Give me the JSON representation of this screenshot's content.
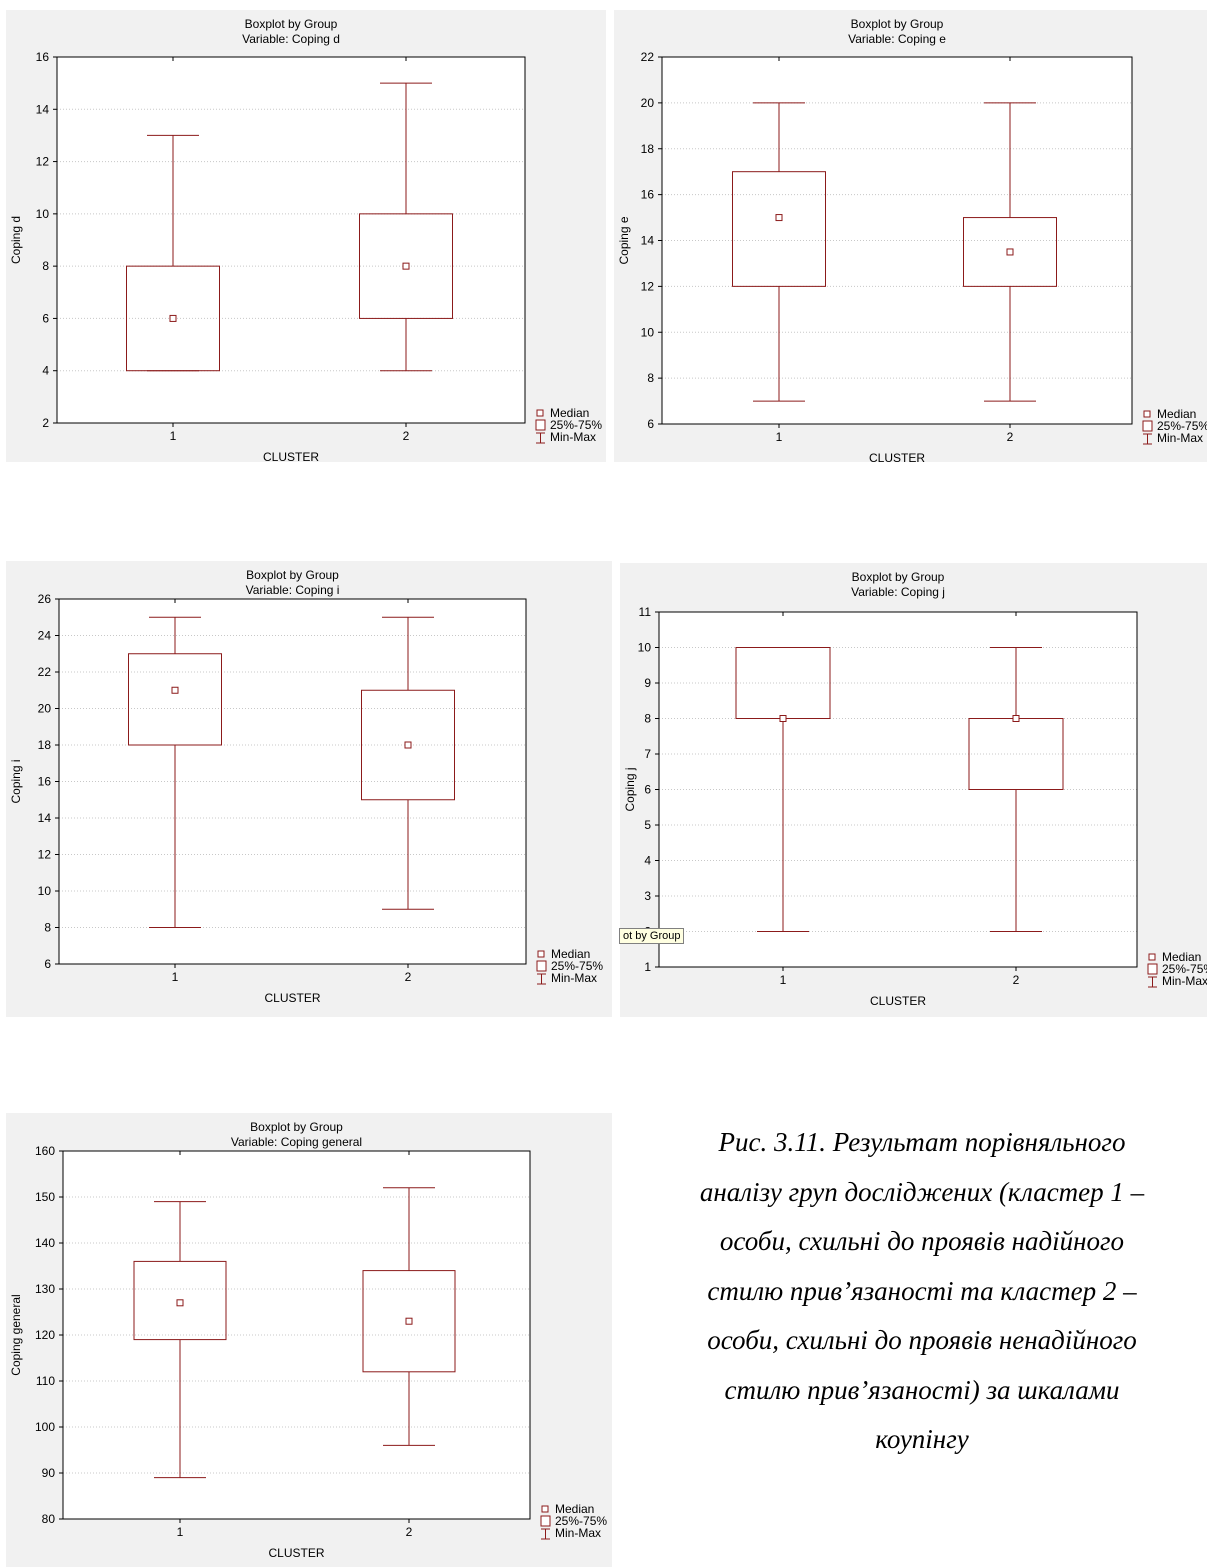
{
  "chart_data": [
    {
      "type": "boxplot",
      "title": "Boxplot by Group",
      "subtitle": "Variable: Coping d",
      "xlabel": "CLUSTER",
      "ylabel": "Coping d",
      "categories": [
        "1",
        "2"
      ],
      "ylim": [
        2,
        16
      ],
      "yticks": [
        2,
        4,
        6,
        8,
        10,
        12,
        14,
        16
      ],
      "boxes": [
        {
          "min": 4,
          "q1": 4,
          "median": 6,
          "q3": 8,
          "max": 13
        },
        {
          "min": 4,
          "q1": 6,
          "median": 8,
          "q3": 10,
          "max": 15
        }
      ],
      "legend": [
        "Median",
        "25%-75%",
        "Min-Max"
      ],
      "legend_position": "bottom-right",
      "grid": true
    },
    {
      "type": "boxplot",
      "title": "Boxplot by Group",
      "subtitle": "Variable: Coping e",
      "xlabel": "CLUSTER",
      "ylabel": "Coping e",
      "categories": [
        "1",
        "2"
      ],
      "ylim": [
        6,
        22
      ],
      "yticks": [
        6,
        8,
        10,
        12,
        14,
        16,
        18,
        20,
        22
      ],
      "boxes": [
        {
          "min": 7,
          "q1": 12,
          "median": 15,
          "q3": 17,
          "max": 20
        },
        {
          "min": 7,
          "q1": 12,
          "median": 13.5,
          "q3": 15,
          "max": 20
        }
      ],
      "legend": [
        "Median",
        "25%-75%",
        "Min-Max"
      ],
      "legend_position": "bottom-right",
      "grid": true
    },
    {
      "type": "boxplot",
      "title": "Boxplot by Group",
      "subtitle": "Variable: Coping i",
      "xlabel": "CLUSTER",
      "ylabel": "Coping i",
      "categories": [
        "1",
        "2"
      ],
      "ylim": [
        6,
        26
      ],
      "yticks": [
        6,
        8,
        10,
        12,
        14,
        16,
        18,
        20,
        22,
        24,
        26
      ],
      "boxes": [
        {
          "min": 8,
          "q1": 18,
          "median": 21,
          "q3": 23,
          "max": 25
        },
        {
          "min": 9,
          "q1": 15,
          "median": 18,
          "q3": 21,
          "max": 25
        }
      ],
      "legend": [
        "Median",
        "25%-75%",
        "Min-Max"
      ],
      "legend_position": "bottom-right",
      "grid": true
    },
    {
      "type": "boxplot",
      "title": "Boxplot by Group",
      "subtitle": "Variable: Coping j",
      "xlabel": "CLUSTER",
      "ylabel": "Coping j",
      "categories": [
        "1",
        "2"
      ],
      "ylim": [
        1,
        11
      ],
      "yticks": [
        1,
        2,
        3,
        4,
        5,
        6,
        7,
        8,
        9,
        10,
        11
      ],
      "boxes": [
        {
          "min": 2,
          "q1": 8,
          "median": 8,
          "q3": 10,
          "max": 10
        },
        {
          "min": 2,
          "q1": 6,
          "median": 8,
          "q3": 8,
          "max": 10
        }
      ],
      "legend": [
        "Median",
        "25%-75%",
        "Min-Max"
      ],
      "legend_position": "bottom-right",
      "grid": true
    },
    {
      "type": "boxplot",
      "title": "Boxplot by Group",
      "subtitle": "Variable: Coping general",
      "xlabel": "CLUSTER",
      "ylabel": "Coping general",
      "categories": [
        "1",
        "2"
      ],
      "ylim": [
        80,
        160
      ],
      "yticks": [
        80,
        90,
        100,
        110,
        120,
        130,
        140,
        150,
        160
      ],
      "boxes": [
        {
          "min": 89,
          "q1": 119,
          "median": 127,
          "q3": 136,
          "max": 149
        },
        {
          "min": 96,
          "q1": 112,
          "median": 123,
          "q3": 134,
          "max": 152
        }
      ],
      "legend": [
        "Median",
        "25%-75%",
        "Min-Max"
      ],
      "legend_position": "bottom-right",
      "grid": true
    }
  ],
  "tooltip": "ot by Group",
  "caption_lines": [
    "Рис. 3.11. Результат порівняльного",
    "аналізу груп досліджених (кластер 1 –",
    "особи, схильні до проявів надійного",
    "стилю прив’язаності та кластер 2 –",
    "особи, схильні до проявів ненадійного",
    "стилю прив’язаності) за шкалами",
    "коупінгу"
  ],
  "colors": {
    "mark": "#8b1a1a",
    "axis": "#000000",
    "grid": "#c8c8c8",
    "panel": "#f1f1f1",
    "plot": "#ffffff"
  }
}
